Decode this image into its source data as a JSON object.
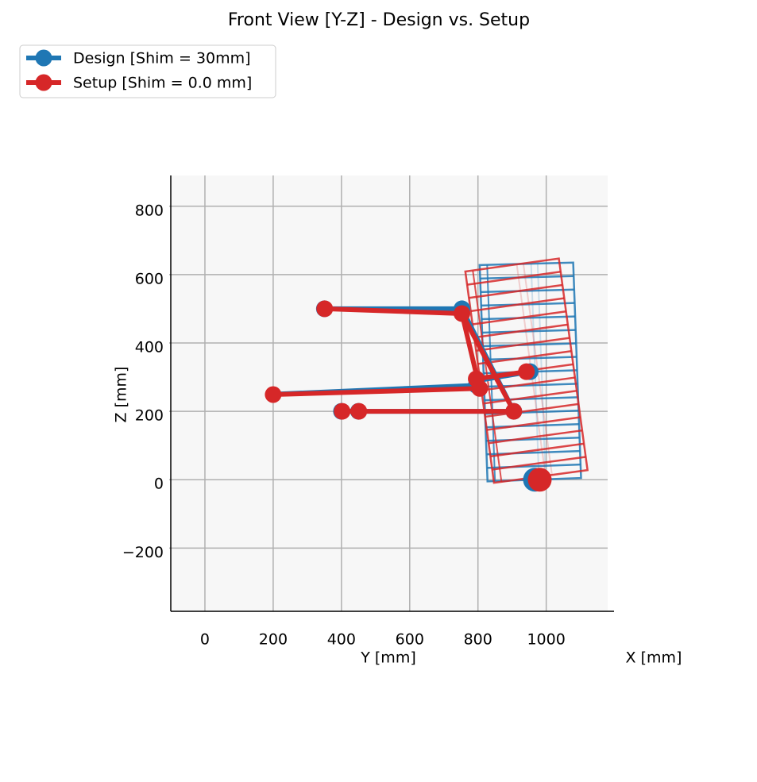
{
  "chart_data": {
    "type": "line",
    "title": "Front View [Y-Z] - Design vs. Setup",
    "xlabel": "Y [mm]",
    "ylabel": "Z [mm]",
    "zlabel": "X [mm]",
    "xlim": [
      -100,
      1180
    ],
    "ylim": [
      -385,
      890
    ],
    "xticks": [
      0,
      200,
      400,
      600,
      800,
      1000
    ],
    "yticks": [
      {
        "value": -200,
        "label": "−200"
      },
      0,
      200,
      400,
      600,
      800
    ],
    "grid": true,
    "legend": "upper left",
    "series": [
      {
        "name": "Design [Shim = 30mm]",
        "color": "#1f77b4",
        "wheel": {
          "y": [
            805,
            1079,
            1102,
            828
          ],
          "z": [
            628,
            635,
            5,
            -5
          ]
        },
        "links": [
          {
            "y": [
              350,
              753
            ],
            "z": [
              500,
              500
            ]
          },
          {
            "y": [
              200,
              795
            ],
            "z": [
              250,
              276
            ]
          },
          {
            "y": [
              753,
              905
            ],
            "z": [
              500,
              200
            ]
          },
          {
            "y": [
              800,
              953
            ],
            "z": [
              290,
              316
            ]
          },
          {
            "y": [
              400,
              905
            ],
            "z": [
              200,
              200
            ]
          }
        ],
        "markers": {
          "y": [
            350,
            753,
            795,
            953,
            400,
            450,
            905
          ],
          "z": [
            500,
            500,
            276,
            316,
            200,
            200,
            200
          ]
        },
        "contact": {
          "y": 967,
          "z": 0
        }
      },
      {
        "name": "Setup [Shim = 0.0 mm]",
        "color": "#d62728",
        "wheel": {
          "y": [
            763,
            1037,
            1121,
            847
          ],
          "z": [
            609,
            647,
            28,
            -9
          ]
        },
        "links": [
          {
            "y": [
              351,
              753
            ],
            "z": [
              500,
              486
            ]
          },
          {
            "y": [
              200,
              805
            ],
            "z": [
              249,
              267
            ]
          },
          {
            "y": [
              753,
              905
            ],
            "z": [
              486,
              200
            ]
          },
          {
            "y": [
              753,
              805
            ],
            "z": [
              486,
              267
            ]
          },
          {
            "y": [
              795,
              942
            ],
            "z": [
              295,
              316
            ]
          },
          {
            "y": [
              402,
              905
            ],
            "z": [
              200,
              200
            ]
          }
        ],
        "markers": {
          "y": [
            351,
            753,
            200,
            805,
            795,
            942,
            402,
            451,
            905
          ],
          "z": [
            500,
            486,
            249,
            267,
            295,
            316,
            200,
            200,
            200
          ]
        },
        "contact": {
          "y": 981,
          "z": 0
        }
      }
    ]
  }
}
